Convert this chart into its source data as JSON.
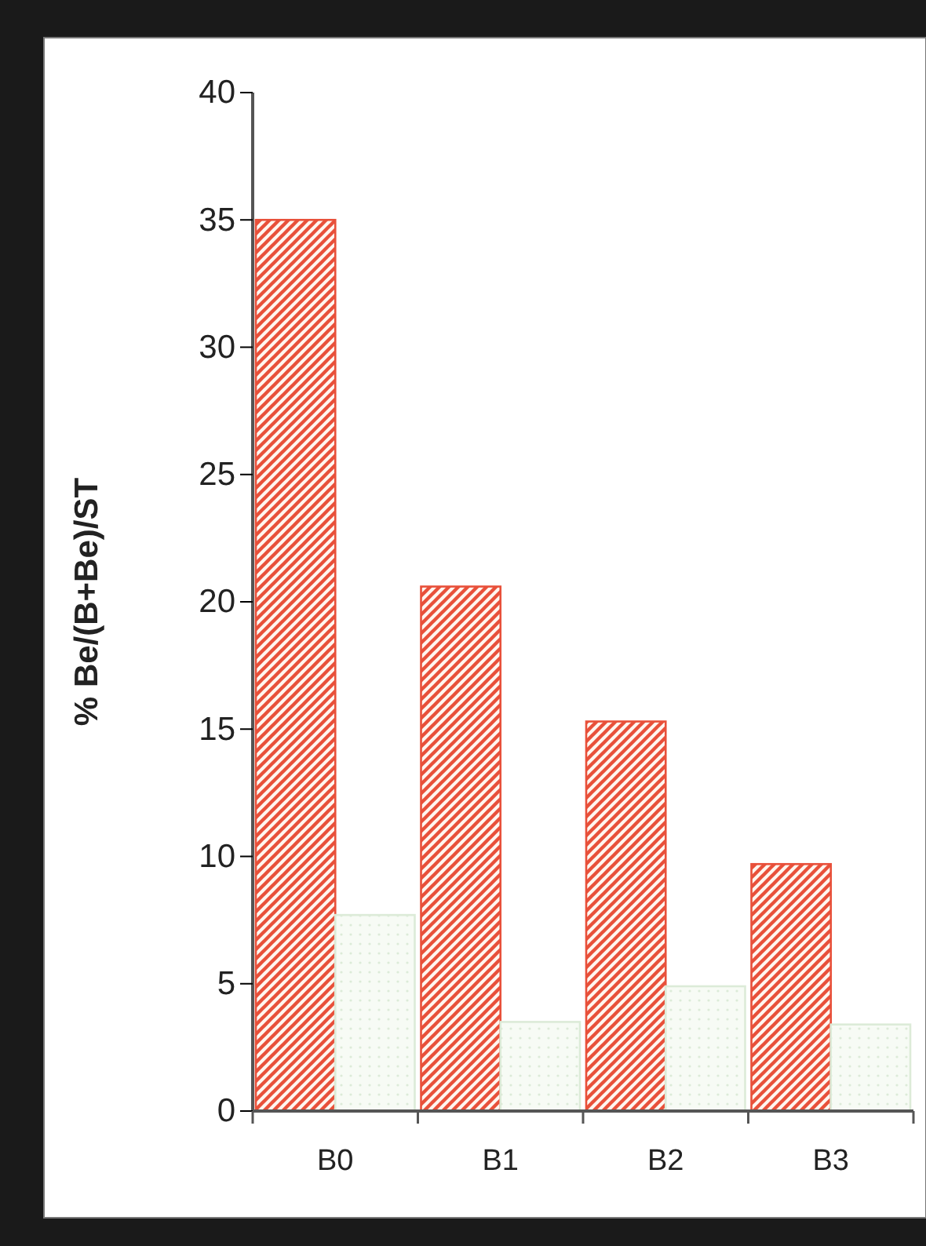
{
  "chart_data": {
    "type": "bar",
    "ylabel": "% Be/(B+Be)/ST",
    "categories": [
      "B0",
      "B1",
      "B2",
      "B3"
    ],
    "series": [
      {
        "color": "#e8503a",
        "values": [
          35.0,
          20.6,
          15.3,
          9.7
        ]
      },
      {
        "color": "#dcebd8",
        "values": [
          7.7,
          3.5,
          4.9,
          3.4
        ]
      }
    ],
    "ylim": [
      0,
      40
    ],
    "yticks": [
      0,
      5,
      10,
      15,
      20,
      25,
      30,
      35,
      40
    ],
    "grid": false
  }
}
